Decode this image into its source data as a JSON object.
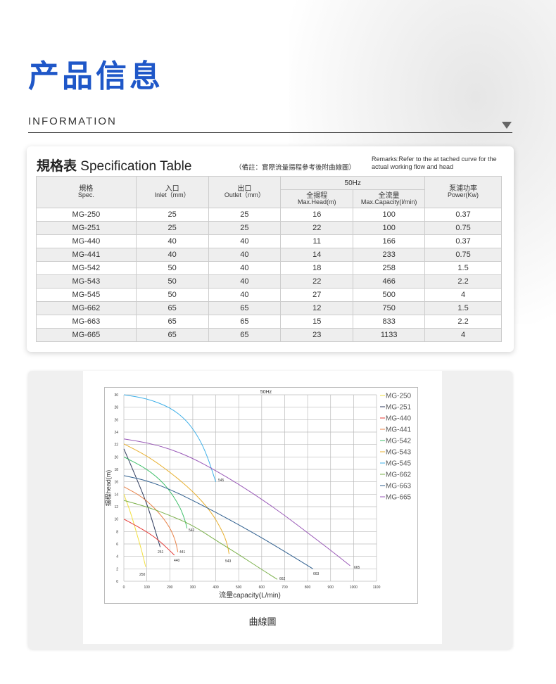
{
  "header": {
    "title": "产品信息",
    "subtitle": "INFORMATION"
  },
  "spec": {
    "title_cn": "規格表",
    "title_en": "Specification Table",
    "note": "（備註：實際流量揚程參考後附曲線圖）",
    "remarks": "Remarks:Refer to the at tached curve for the actual working flow and head",
    "group_header": "50Hz",
    "columns": [
      {
        "cn": "規格",
        "en": "Spec."
      },
      {
        "cn": "入口",
        "en": "Inlet（mm）"
      },
      {
        "cn": "出口",
        "en": "Outlet（mm）"
      },
      {
        "cn": "全揚程",
        "en": "Max.Head(m)"
      },
      {
        "cn": "全流量",
        "en": "Max.Capacity(l/min)"
      },
      {
        "cn": "泵浦功率",
        "en": "Power(Kw)"
      }
    ],
    "rows": [
      [
        "MG-250",
        "25",
        "25",
        "16",
        "100",
        "0.37"
      ],
      [
        "MG-251",
        "25",
        "25",
        "22",
        "100",
        "0.75"
      ],
      [
        "MG-440",
        "40",
        "40",
        "11",
        "166",
        "0.37"
      ],
      [
        "MG-441",
        "40",
        "40",
        "14",
        "233",
        "0.75"
      ],
      [
        "MG-542",
        "50",
        "40",
        "18",
        "258",
        "1.5"
      ],
      [
        "MG-543",
        "50",
        "40",
        "22",
        "466",
        "2.2"
      ],
      [
        "MG-545",
        "50",
        "40",
        "27",
        "500",
        "4"
      ],
      [
        "MG-662",
        "65",
        "65",
        "12",
        "750",
        "1.5"
      ],
      [
        "MG-663",
        "65",
        "65",
        "15",
        "833",
        "2.2"
      ],
      [
        "MG-665",
        "65",
        "65",
        "23",
        "1133",
        "4"
      ]
    ]
  },
  "chart_caption": "曲線圖",
  "chart_data": {
    "type": "line",
    "title": "50Hz",
    "xlabel": "流量capacity(L/min)",
    "ylabel": "揚程head(m)",
    "xlim": [
      0,
      1100
    ],
    "ylim": [
      0,
      30
    ],
    "xticks": [
      0,
      100,
      200,
      300,
      400,
      500,
      600,
      700,
      800,
      900,
      1000,
      1100
    ],
    "yticks": [
      0,
      2,
      4,
      6,
      8,
      10,
      12,
      14,
      16,
      18,
      20,
      22,
      24,
      26,
      28,
      30
    ],
    "grid": true,
    "legend": "right",
    "series": [
      {
        "name": "MG-250",
        "label": "250",
        "color": "#f2e040",
        "points": [
          [
            0,
            14
          ],
          [
            30,
            11
          ],
          [
            60,
            7.2
          ],
          [
            80,
            4.6
          ],
          [
            95,
            2.3
          ]
        ]
      },
      {
        "name": "MG-251",
        "label": "251",
        "color": "#2e3a5c",
        "points": [
          [
            0,
            21.3
          ],
          [
            50,
            17
          ],
          [
            100,
            12.5
          ],
          [
            130,
            9
          ],
          [
            158,
            5.5
          ]
        ]
      },
      {
        "name": "MG-440",
        "label": "440",
        "color": "#e53935",
        "points": [
          [
            0,
            10
          ],
          [
            60,
            8.8
          ],
          [
            120,
            7.5
          ],
          [
            170,
            6
          ],
          [
            220,
            4.2
          ]
        ]
      },
      {
        "name": "MG-441",
        "label": "441",
        "color": "#e8834a",
        "points": [
          [
            0,
            15.2
          ],
          [
            80,
            13.6
          ],
          [
            150,
            11.2
          ],
          [
            200,
            8.7
          ],
          [
            225,
            6.5
          ],
          [
            235,
            4.7
          ]
        ]
      },
      {
        "name": "MG-542",
        "label": "542",
        "color": "#3fbf6a",
        "points": [
          [
            0,
            20
          ],
          [
            100,
            18.1
          ],
          [
            180,
            15.6
          ],
          [
            240,
            12.3
          ],
          [
            265,
            10
          ],
          [
            275,
            8.5
          ]
        ]
      },
      {
        "name": "MG-543",
        "label": "543",
        "color": "#e8b030",
        "points": [
          [
            0,
            22.1
          ],
          [
            100,
            20.2
          ],
          [
            200,
            17.6
          ],
          [
            300,
            14.5
          ],
          [
            380,
            11.2
          ],
          [
            430,
            8
          ],
          [
            450,
            6
          ],
          [
            458,
            4.4
          ]
        ]
      },
      {
        "name": "MG-545",
        "label": "545",
        "color": "#3fb0e8",
        "points": [
          [
            0,
            30
          ],
          [
            100,
            29.4
          ],
          [
            200,
            28
          ],
          [
            270,
            26
          ],
          [
            320,
            23.5
          ],
          [
            360,
            20.5
          ],
          [
            400,
            16
          ]
        ]
      },
      {
        "name": "MG-662",
        "label": "662",
        "color": "#7ab04a",
        "points": [
          [
            0,
            13
          ],
          [
            100,
            12
          ],
          [
            200,
            10.6
          ],
          [
            300,
            9
          ],
          [
            400,
            6.6
          ],
          [
            500,
            4.3
          ],
          [
            600,
            1.9
          ],
          [
            668,
            0.3
          ]
        ]
      },
      {
        "name": "MG-663",
        "label": "663",
        "color": "#2f5f8f",
        "points": [
          [
            0,
            17
          ],
          [
            100,
            16.2
          ],
          [
            200,
            14.8
          ],
          [
            300,
            13
          ],
          [
            400,
            11.1
          ],
          [
            500,
            9.1
          ],
          [
            600,
            7
          ],
          [
            700,
            4.8
          ],
          [
            823,
            2
          ]
        ]
      },
      {
        "name": "MG-665",
        "label": "665",
        "color": "#9a5ab8",
        "points": [
          [
            0,
            22.9
          ],
          [
            100,
            22.3
          ],
          [
            200,
            21.3
          ],
          [
            300,
            19.8
          ],
          [
            400,
            17.8
          ],
          [
            500,
            15.6
          ],
          [
            600,
            13.2
          ],
          [
            700,
            10.6
          ],
          [
            800,
            7.8
          ],
          [
            900,
            5
          ],
          [
            985,
            2.5
          ]
        ]
      }
    ]
  }
}
